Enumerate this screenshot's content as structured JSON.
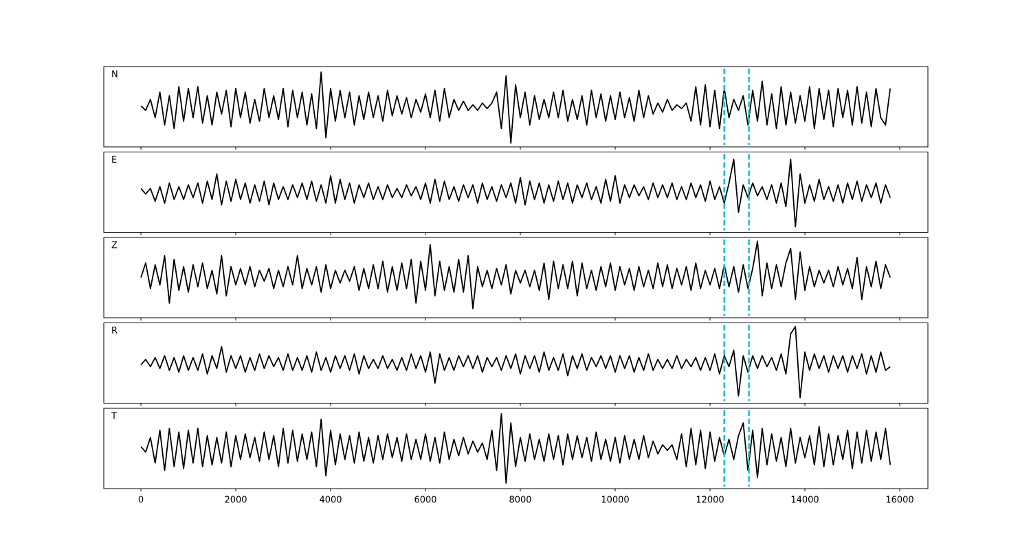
{
  "chart_data": {
    "type": "line",
    "x": [
      0,
      100,
      200,
      300,
      400,
      500,
      600,
      700,
      800,
      900,
      1000,
      1100,
      1200,
      1300,
      1400,
      1500,
      1600,
      1700,
      1800,
      1900,
      2000,
      2100,
      2200,
      2300,
      2400,
      2500,
      2600,
      2700,
      2800,
      2900,
      3000,
      3100,
      3200,
      3300,
      3400,
      3500,
      3600,
      3700,
      3800,
      3900,
      4000,
      4100,
      4200,
      4300,
      4400,
      4500,
      4600,
      4700,
      4800,
      4900,
      5000,
      5100,
      5200,
      5300,
      5400,
      5500,
      5600,
      5700,
      5800,
      5900,
      6000,
      6100,
      6200,
      6300,
      6400,
      6500,
      6600,
      6700,
      6800,
      6900,
      7000,
      7100,
      7200,
      7300,
      7400,
      7500,
      7600,
      7700,
      7800,
      7900,
      8000,
      8100,
      8200,
      8300,
      8400,
      8500,
      8600,
      8700,
      8800,
      8900,
      9000,
      9100,
      9200,
      9300,
      9400,
      9500,
      9600,
      9700,
      9800,
      9900,
      10000,
      10100,
      10200,
      10300,
      10400,
      10500,
      10600,
      10700,
      10800,
      10900,
      11000,
      11100,
      11200,
      11300,
      11400,
      11500,
      11600,
      11700,
      11800,
      11900,
      12000,
      12100,
      12200,
      12300,
      12400,
      12500,
      12600,
      12700,
      12800,
      12900,
      13000,
      13100,
      13200,
      13300,
      13400,
      13500,
      13600,
      13700,
      13800,
      13900,
      14000,
      14100,
      14200,
      14300,
      14400,
      14500,
      14600,
      14700,
      14800,
      14900,
      15000,
      15100,
      15200,
      15300,
      15400,
      15500,
      15600,
      15700,
      15800
    ],
    "series": [
      {
        "name": "N",
        "color": "#000000",
        "values": [
          0.02,
          -0.1,
          0.2,
          -0.3,
          0.4,
          -0.5,
          0.3,
          -0.6,
          0.55,
          -0.4,
          0.5,
          -0.3,
          0.55,
          -0.45,
          0.3,
          -0.5,
          0.4,
          -0.2,
          0.45,
          -0.55,
          0.5,
          -0.3,
          0.4,
          -0.45,
          0.2,
          -0.4,
          0.5,
          -0.3,
          0.3,
          -0.35,
          0.5,
          -0.55,
          0.45,
          -0.3,
          0.4,
          -0.5,
          0.35,
          -0.6,
          0.95,
          -0.85,
          0.5,
          -0.4,
          0.45,
          -0.3,
          0.4,
          -0.5,
          0.3,
          -0.35,
          0.4,
          -0.3,
          0.3,
          -0.4,
          0.45,
          -0.25,
          0.3,
          -0.2,
          0.25,
          -0.3,
          0.2,
          -0.15,
          0.35,
          -0.3,
          0.45,
          -0.4,
          0.5,
          -0.3,
          0.2,
          -0.1,
          0.15,
          -0.1,
          0.05,
          -0.1,
          0.1,
          -0.05,
          0.1,
          0.4,
          -0.6,
          0.85,
          -1.0,
          0.6,
          -0.3,
          0.4,
          -0.5,
          0.3,
          -0.35,
          0.2,
          -0.3,
          0.4,
          -0.3,
          0.45,
          -0.4,
          0.2,
          -0.35,
          0.3,
          -0.5,
          0.45,
          -0.3,
          0.35,
          -0.4,
          0.3,
          -0.35,
          0.4,
          -0.3,
          0.25,
          -0.4,
          0.45,
          -0.3,
          0.3,
          -0.2,
          0.1,
          -0.15,
          0.2,
          -0.1,
          0.05,
          -0.05,
          0.1,
          -0.4,
          0.55,
          -0.5,
          0.6,
          -0.55,
          0.45,
          -0.6,
          0.5,
          -0.3,
          0.2,
          -0.1,
          0.3,
          -0.5,
          0.45,
          -0.4,
          0.7,
          -0.5,
          0.35,
          -0.6,
          0.55,
          -0.5,
          0.4,
          -0.45,
          0.3,
          -0.4,
          0.55,
          -0.6,
          0.5,
          -0.35,
          0.45,
          -0.55,
          0.5,
          -0.3,
          0.45,
          -0.5,
          0.55,
          -0.45,
          0.4,
          -0.55,
          0.5,
          -0.3,
          -0.5,
          0.5
        ]
      },
      {
        "name": "E",
        "color": "#000000",
        "values": [
          0.1,
          -0.05,
          0.1,
          -0.25,
          0.15,
          -0.3,
          0.25,
          -0.2,
          0.15,
          -0.2,
          0.2,
          -0.15,
          0.25,
          -0.3,
          0.3,
          -0.2,
          0.5,
          -0.35,
          0.3,
          -0.25,
          0.35,
          -0.2,
          0.25,
          -0.3,
          0.2,
          -0.25,
          0.3,
          -0.35,
          0.25,
          -0.2,
          0.15,
          -0.2,
          0.2,
          -0.15,
          0.25,
          -0.2,
          0.3,
          -0.25,
          0.2,
          -0.3,
          0.45,
          -0.3,
          0.35,
          -0.2,
          0.25,
          -0.3,
          0.2,
          -0.15,
          0.25,
          -0.2,
          0.15,
          -0.2,
          0.2,
          -0.15,
          0.1,
          -0.15,
          0.2,
          -0.1,
          0.15,
          -0.2,
          0.25,
          -0.3,
          0.35,
          -0.25,
          0.3,
          -0.2,
          0.15,
          -0.25,
          0.2,
          -0.15,
          0.2,
          -0.3,
          0.25,
          -0.2,
          0.15,
          -0.25,
          0.2,
          -0.15,
          0.25,
          -0.3,
          0.4,
          -0.35,
          0.3,
          -0.2,
          0.25,
          -0.3,
          0.2,
          -0.25,
          0.3,
          -0.2,
          0.25,
          -0.3,
          0.2,
          -0.15,
          0.25,
          -0.2,
          0.15,
          -0.3,
          0.35,
          -0.25,
          0.45,
          -0.3,
          0.2,
          -0.15,
          0.2,
          -0.1,
          0.15,
          -0.2,
          0.25,
          -0.15,
          0.2,
          -0.15,
          0.25,
          -0.2,
          0.15,
          -0.2,
          0.25,
          -0.15,
          0.2,
          -0.25,
          0.3,
          -0.2,
          0.15,
          -0.3,
          0.25,
          0.9,
          -0.55,
          0.2,
          -0.15,
          0.25,
          -0.1,
          0.15,
          -0.2,
          0.2,
          -0.3,
          0.25,
          -0.4,
          0.9,
          -0.95,
          0.5,
          -0.3,
          0.2,
          -0.25,
          0.35,
          -0.2,
          0.15,
          -0.25,
          0.2,
          -0.3,
          0.25,
          -0.2,
          0.3,
          -0.25,
          0.2,
          -0.15,
          0.25,
          -0.3,
          0.2,
          -0.15
        ]
      },
      {
        "name": "Z",
        "color": "#000000",
        "values": [
          0.0,
          0.4,
          -0.3,
          0.35,
          -0.2,
          0.6,
          -0.7,
          0.5,
          -0.35,
          0.3,
          -0.4,
          0.35,
          -0.25,
          0.4,
          -0.3,
          0.2,
          -0.45,
          0.6,
          -0.5,
          0.3,
          -0.2,
          0.25,
          -0.2,
          0.3,
          -0.25,
          0.2,
          -0.1,
          0.25,
          -0.3,
          0.2,
          -0.25,
          0.3,
          -0.2,
          0.6,
          -0.3,
          0.25,
          -0.2,
          0.3,
          -0.4,
          0.35,
          -0.3,
          0.2,
          -0.15,
          0.2,
          -0.1,
          0.3,
          -0.35,
          0.25,
          -0.3,
          0.35,
          -0.3,
          0.45,
          -0.4,
          0.3,
          -0.35,
          0.4,
          -0.3,
          0.5,
          -0.7,
          0.45,
          -0.35,
          0.9,
          -0.5,
          0.45,
          -0.35,
          0.3,
          -0.4,
          0.5,
          -0.4,
          0.6,
          -0.85,
          0.3,
          -0.25,
          0.2,
          -0.3,
          0.25,
          -0.2,
          0.35,
          -0.45,
          0.2,
          -0.15,
          0.2,
          -0.25,
          0.2,
          -0.35,
          0.4,
          -0.6,
          0.45,
          -0.3,
          0.35,
          -0.3,
          0.45,
          -0.5,
          0.4,
          -0.3,
          0.2,
          -0.35,
          0.3,
          -0.25,
          0.4,
          -0.35,
          0.3,
          -0.2,
          0.25,
          -0.35,
          0.3,
          -0.25,
          0.2,
          -0.3,
          0.4,
          -0.25,
          0.35,
          -0.3,
          0.25,
          -0.2,
          0.3,
          -0.35,
          0.4,
          -0.3,
          0.2,
          -0.2,
          0.25,
          -0.3,
          0.35,
          -0.25,
          0.3,
          -0.4,
          0.35,
          -0.3,
          0.25,
          1.0,
          -0.5,
          0.4,
          -0.3,
          0.35,
          -0.25,
          0.4,
          0.8,
          -0.6,
          0.7,
          -0.35,
          0.3,
          -0.25,
          0.2,
          -0.15,
          0.2,
          -0.25,
          0.3,
          -0.2,
          0.25,
          -0.3,
          0.55,
          -0.6,
          0.3,
          -0.25,
          0.45,
          -0.3,
          0.35,
          0.0
        ]
      },
      {
        "name": "R",
        "color": "#000000",
        "values": [
          -0.05,
          0.1,
          -0.1,
          0.15,
          -0.15,
          0.2,
          -0.2,
          0.15,
          -0.25,
          0.2,
          -0.2,
          0.15,
          -0.2,
          0.25,
          -0.3,
          0.2,
          -0.15,
          0.45,
          -0.25,
          0.2,
          -0.15,
          0.2,
          -0.25,
          0.15,
          -0.2,
          0.25,
          -0.15,
          0.2,
          -0.1,
          0.15,
          -0.2,
          0.25,
          -0.2,
          0.15,
          -0.2,
          0.2,
          -0.25,
          0.3,
          -0.2,
          0.15,
          -0.25,
          0.2,
          -0.15,
          0.2,
          -0.2,
          0.25,
          -0.3,
          0.2,
          -0.15,
          0.1,
          -0.15,
          0.2,
          -0.15,
          0.1,
          -0.2,
          0.15,
          -0.2,
          0.25,
          -0.15,
          0.2,
          -0.25,
          0.3,
          -0.55,
          0.25,
          -0.2,
          0.15,
          -0.2,
          0.2,
          -0.1,
          0.2,
          -0.15,
          0.2,
          -0.25,
          0.15,
          -0.1,
          0.15,
          -0.2,
          0.2,
          -0.15,
          0.25,
          -0.3,
          0.2,
          -0.15,
          0.2,
          -0.25,
          0.3,
          -0.2,
          0.15,
          -0.2,
          0.25,
          -0.35,
          0.2,
          -0.15,
          0.25,
          -0.2,
          0.15,
          -0.1,
          0.2,
          -0.15,
          0.2,
          -0.25,
          0.2,
          -0.15,
          0.2,
          -0.25,
          0.15,
          -0.2,
          0.25,
          -0.2,
          0.1,
          -0.15,
          0.1,
          -0.15,
          0.2,
          -0.15,
          0.1,
          -0.1,
          0.15,
          -0.2,
          0.15,
          -0.2,
          0.25,
          -0.3,
          0.2,
          -0.1,
          0.35,
          -0.9,
          0.2,
          -0.25,
          0.2,
          -0.15,
          0.2,
          -0.1,
          0.15,
          -0.2,
          0.25,
          -0.3,
          0.8,
          1.0,
          -0.95,
          0.3,
          -0.2,
          0.25,
          -0.15,
          0.2,
          -0.25,
          0.2,
          -0.15,
          0.2,
          -0.25,
          0.2,
          -0.15,
          0.25,
          -0.3,
          0.2,
          -0.25,
          0.3,
          -0.2,
          -0.1
        ]
      },
      {
        "name": "T",
        "color": "#000000",
        "values": [
          0.05,
          -0.1,
          0.3,
          -0.4,
          0.5,
          -0.6,
          0.55,
          -0.5,
          0.45,
          -0.55,
          0.5,
          -0.4,
          0.55,
          -0.5,
          0.35,
          -0.45,
          0.3,
          -0.4,
          0.45,
          -0.5,
          0.35,
          -0.3,
          0.4,
          -0.25,
          0.3,
          -0.35,
          0.45,
          -0.3,
          0.35,
          -0.5,
          0.55,
          -0.4,
          0.5,
          -0.35,
          0.4,
          -0.3,
          0.45,
          -0.5,
          0.8,
          -0.75,
          0.5,
          -0.45,
          0.4,
          -0.3,
          0.35,
          -0.4,
          0.45,
          -0.35,
          0.3,
          -0.4,
          0.35,
          -0.3,
          0.4,
          -0.25,
          0.3,
          -0.35,
          0.4,
          -0.3,
          0.25,
          -0.3,
          0.4,
          -0.35,
          0.3,
          -0.4,
          0.45,
          -0.3,
          0.25,
          -0.2,
          0.3,
          -0.15,
          0.2,
          -0.1,
          0.15,
          -0.3,
          0.5,
          -0.6,
          0.95,
          -0.95,
          0.7,
          -0.5,
          0.3,
          -0.35,
          0.4,
          -0.3,
          0.25,
          -0.35,
          0.4,
          -0.3,
          0.35,
          -0.45,
          0.4,
          -0.3,
          0.35,
          -0.25,
          0.3,
          -0.35,
          0.45,
          -0.3,
          0.25,
          -0.35,
          0.3,
          -0.4,
          0.35,
          -0.3,
          0.25,
          -0.3,
          0.35,
          -0.25,
          0.2,
          -0.15,
          0.1,
          -0.05,
          0.1,
          -0.3,
          0.4,
          -0.5,
          0.55,
          -0.45,
          0.5,
          -0.55,
          0.45,
          -0.35,
          0.3,
          -0.2,
          0.25,
          -0.3,
          0.35,
          0.7,
          -0.6,
          0.5,
          -0.8,
          0.55,
          -0.45,
          0.4,
          -0.35,
          0.3,
          -0.5,
          0.55,
          -0.4,
          0.3,
          -0.25,
          0.35,
          -0.45,
          0.6,
          -0.5,
          0.4,
          -0.45,
          0.35,
          -0.3,
          0.5,
          -0.55,
          0.45,
          -0.4,
          0.5,
          -0.35,
          0.45,
          -0.3,
          0.55,
          -0.45
        ]
      }
    ],
    "xlim": [
      -783,
      16594
    ],
    "xticks": [
      0,
      2000,
      4000,
      6000,
      8000,
      10000,
      12000,
      14000,
      16000
    ],
    "ylim": [
      -1.1,
      1.1
    ],
    "vlines": [
      12300,
      12820
    ],
    "vline_color": "#17becf"
  }
}
